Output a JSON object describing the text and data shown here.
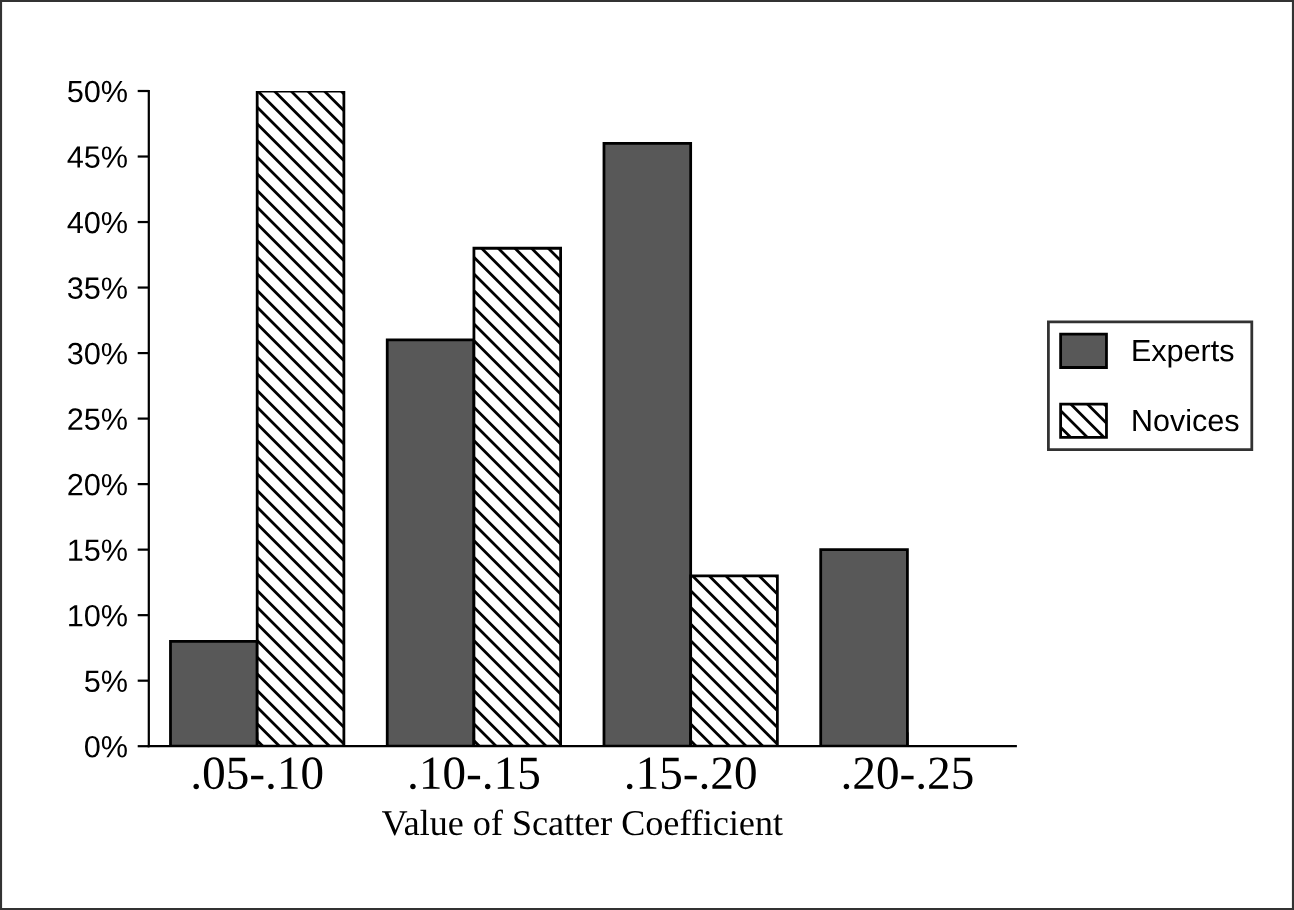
{
  "chart_data": {
    "type": "bar",
    "xlabel": "Value of Scatter Coefficient",
    "categories": [
      ".05-.10",
      ".10-.15",
      ".15-.20",
      ".20-.25"
    ],
    "series": [
      {
        "name": "Experts",
        "color": "#585858",
        "values": [
          8,
          31,
          46,
          15
        ]
      },
      {
        "name": "Novices",
        "color": "#000000",
        "values": [
          50,
          38,
          13,
          null
        ]
      }
    ],
    "ylim": [
      0,
      50
    ],
    "yticks": [
      {
        "value": 0,
        "label": "0%"
      },
      {
        "value": 5,
        "label": "5%"
      },
      {
        "value": 10,
        "label": "10%"
      },
      {
        "value": 15,
        "label": "15%"
      },
      {
        "value": 20,
        "label": "20%"
      },
      {
        "value": 25,
        "label": "25%"
      },
      {
        "value": 30,
        "label": "30%"
      },
      {
        "value": 35,
        "label": "35%"
      },
      {
        "value": 40,
        "label": "40%"
      },
      {
        "value": 45,
        "label": "45%"
      },
      {
        "value": 50,
        "label": "50%"
      }
    ],
    "grid": false,
    "legend": "right"
  }
}
